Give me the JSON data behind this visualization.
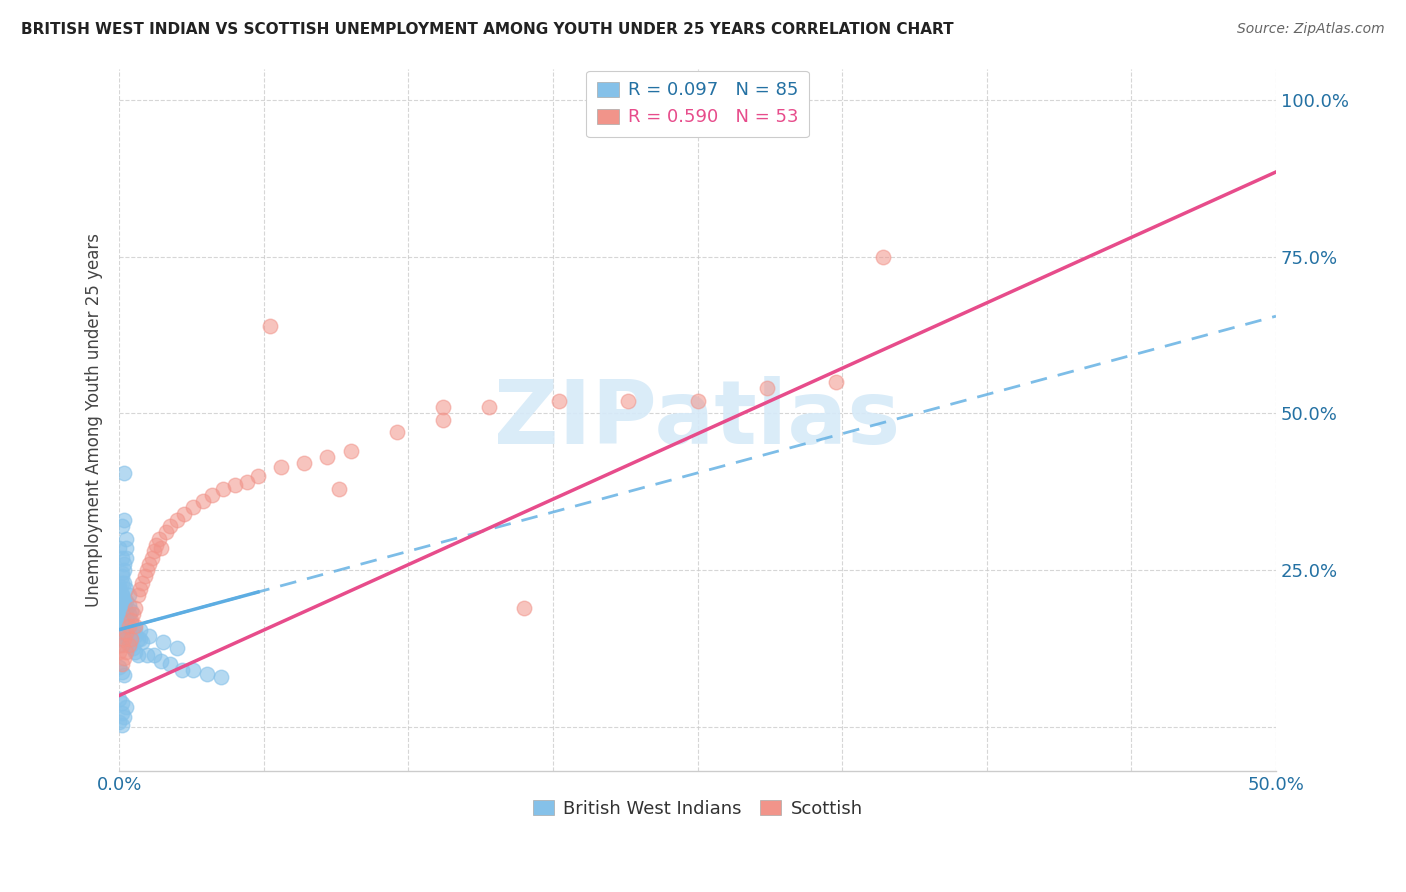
{
  "title": "BRITISH WEST INDIAN VS SCOTTISH UNEMPLOYMENT AMONG YOUTH UNDER 25 YEARS CORRELATION CHART",
  "source": "Source: ZipAtlas.com",
  "ylabel": "Unemployment Among Youth under 25 years",
  "legend1_label": "R = 0.097   N = 85",
  "legend2_label": "R = 0.590   N = 53",
  "legend_bottom_label1": "British West Indians",
  "legend_bottom_label2": "Scottish",
  "color_blue": "#85c1e9",
  "color_pink": "#f1948a",
  "color_blue_line": "#5dade2",
  "color_pink_line": "#e74c8b",
  "watermark_text": "ZIPatlas",
  "watermark_color": "#d6eaf8",
  "background_color": "#ffffff",
  "grid_color": "#cccccc",
  "xlim": [
    0.0,
    0.5
  ],
  "ylim": [
    0.0,
    1.0
  ],
  "ytick_positions": [
    0.0,
    0.25,
    0.5,
    0.75,
    1.0
  ],
  "ytick_labels": [
    "",
    "25.0%",
    "50.0%",
    "75.0%",
    "100.0%"
  ],
  "xtick_positions": [
    0.0,
    0.0625,
    0.125,
    0.1875,
    0.25,
    0.3125,
    0.375,
    0.4375,
    0.5
  ],
  "bwi_trend_x0": 0.0,
  "bwi_trend_y0": 0.155,
  "bwi_trend_x1": 0.06,
  "bwi_trend_y1": 0.215,
  "scot_trend_x0": 0.0,
  "scot_trend_y0": 0.05,
  "scot_trend_x1": 0.5,
  "scot_trend_y1": 0.885,
  "bwi_x": [
    0.002,
    0.001,
    0.0,
    0.001,
    0.002,
    0.003,
    0.001,
    0.002,
    0.001,
    0.0,
    0.003,
    0.002,
    0.001,
    0.0,
    0.001,
    0.002,
    0.003,
    0.001,
    0.0,
    0.001,
    0.002,
    0.0,
    0.001,
    0.003,
    0.002,
    0.001,
    0.004,
    0.002,
    0.001,
    0.003,
    0.0,
    0.002,
    0.001,
    0.003,
    0.004,
    0.0,
    0.001,
    0.002,
    0.003,
    0.001,
    0.0,
    0.002,
    0.001,
    0.004,
    0.003,
    0.0,
    0.001,
    0.005,
    0.002,
    0.003,
    0.006,
    0.007,
    0.004,
    0.008,
    0.005,
    0.009,
    0.006,
    0.01,
    0.007,
    0.008,
    0.012,
    0.015,
    0.018,
    0.022,
    0.027,
    0.032,
    0.038,
    0.044,
    0.005,
    0.009,
    0.013,
    0.019,
    0.025,
    0.003,
    0.007,
    0.0,
    0.001,
    0.002,
    0.0,
    0.001,
    0.003,
    0.001,
    0.002,
    0.0,
    0.001
  ],
  "bwi_y": [
    0.405,
    0.32,
    0.285,
    0.21,
    0.33,
    0.3,
    0.27,
    0.25,
    0.23,
    0.22,
    0.285,
    0.26,
    0.24,
    0.215,
    0.2,
    0.19,
    0.27,
    0.245,
    0.225,
    0.21,
    0.23,
    0.19,
    0.17,
    0.22,
    0.2,
    0.185,
    0.21,
    0.195,
    0.18,
    0.2,
    0.185,
    0.175,
    0.16,
    0.185,
    0.195,
    0.17,
    0.16,
    0.155,
    0.17,
    0.15,
    0.14,
    0.165,
    0.15,
    0.18,
    0.165,
    0.13,
    0.145,
    0.185,
    0.155,
    0.145,
    0.155,
    0.145,
    0.135,
    0.14,
    0.13,
    0.14,
    0.125,
    0.135,
    0.12,
    0.115,
    0.115,
    0.115,
    0.105,
    0.1,
    0.09,
    0.09,
    0.085,
    0.08,
    0.165,
    0.155,
    0.145,
    0.135,
    0.125,
    0.17,
    0.155,
    0.095,
    0.088,
    0.082,
    0.045,
    0.038,
    0.032,
    0.022,
    0.015,
    0.008,
    0.003
  ],
  "scot_x": [
    0.0,
    0.001,
    0.001,
    0.002,
    0.002,
    0.003,
    0.003,
    0.004,
    0.004,
    0.005,
    0.005,
    0.006,
    0.007,
    0.007,
    0.008,
    0.009,
    0.01,
    0.011,
    0.012,
    0.013,
    0.014,
    0.015,
    0.016,
    0.017,
    0.018,
    0.02,
    0.022,
    0.025,
    0.028,
    0.032,
    0.036,
    0.04,
    0.045,
    0.05,
    0.055,
    0.06,
    0.07,
    0.08,
    0.09,
    0.1,
    0.12,
    0.14,
    0.16,
    0.19,
    0.22,
    0.25,
    0.28,
    0.31,
    0.14,
    0.065,
    0.095,
    0.175,
    0.33
  ],
  "scot_y": [
    0.12,
    0.1,
    0.13,
    0.11,
    0.14,
    0.12,
    0.15,
    0.13,
    0.16,
    0.14,
    0.17,
    0.18,
    0.19,
    0.16,
    0.21,
    0.22,
    0.23,
    0.24,
    0.25,
    0.26,
    0.27,
    0.28,
    0.29,
    0.3,
    0.285,
    0.31,
    0.32,
    0.33,
    0.34,
    0.35,
    0.36,
    0.37,
    0.38,
    0.385,
    0.39,
    0.4,
    0.415,
    0.42,
    0.43,
    0.44,
    0.47,
    0.49,
    0.51,
    0.52,
    0.52,
    0.52,
    0.54,
    0.55,
    0.51,
    0.64,
    0.38,
    0.19,
    0.75
  ]
}
